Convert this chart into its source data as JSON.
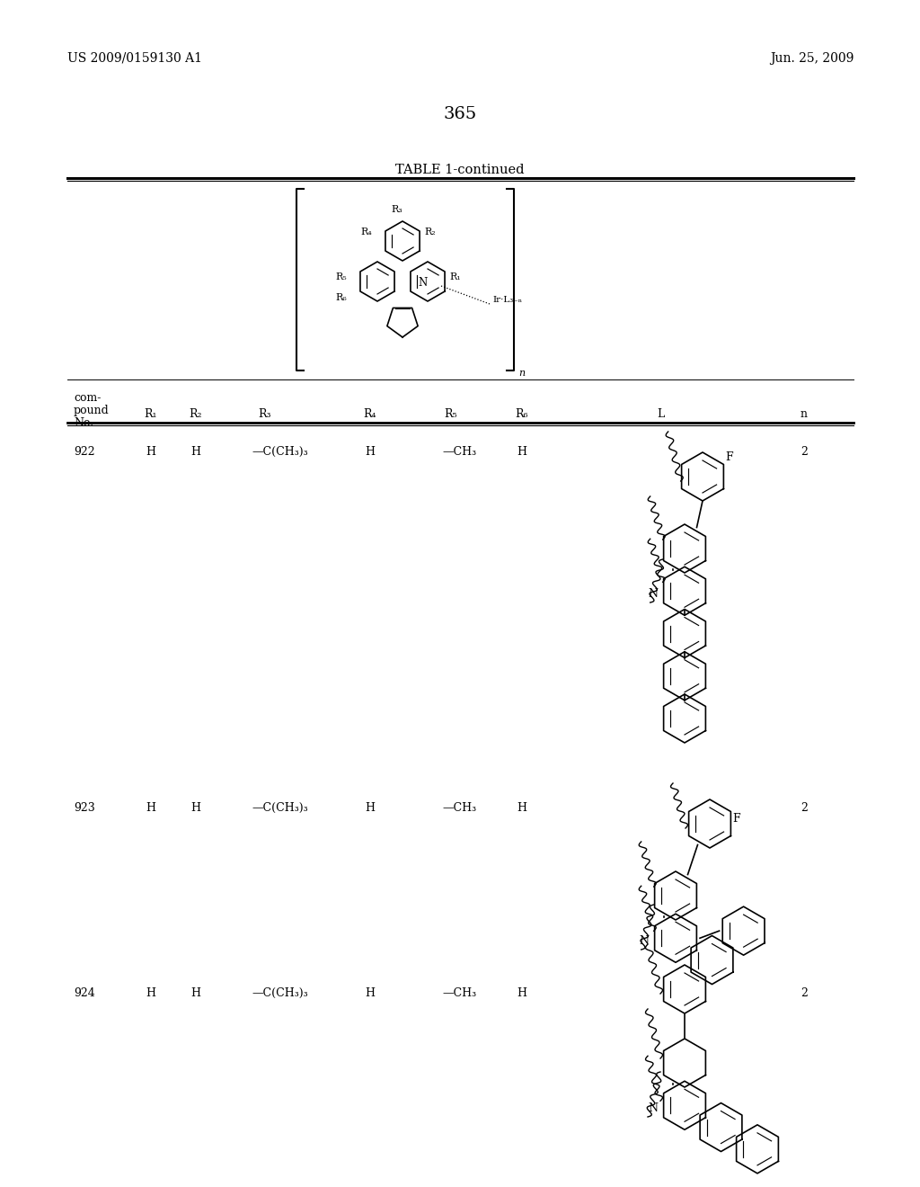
{
  "background_color": "#ffffff",
  "page_number": "365",
  "header_left": "US 2009/0159130 A1",
  "header_right": "Jun. 25, 2009",
  "table_title": "TABLE 1-continued"
}
